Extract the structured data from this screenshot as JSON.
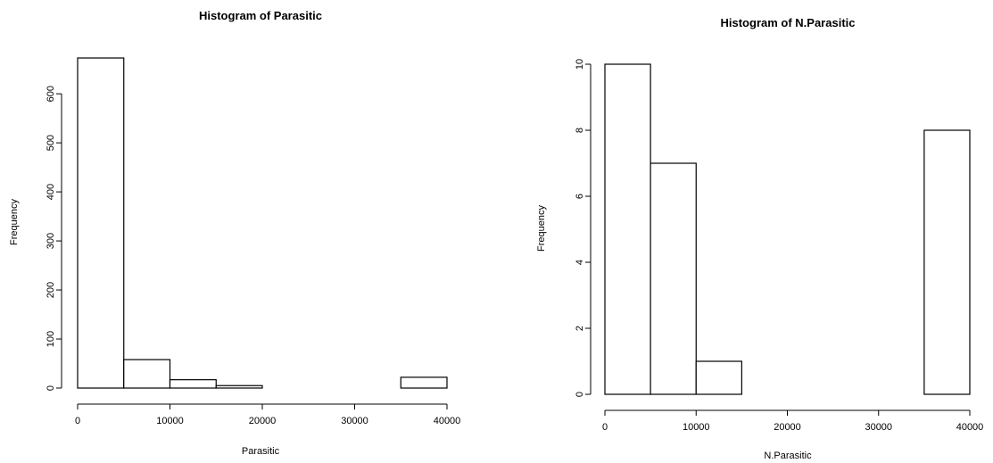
{
  "chart_data": [
    {
      "type": "bar",
      "title": "Histogram of Parasitic",
      "xlabel": "Parasitic",
      "ylabel": "Frequency",
      "bin_edges": [
        0,
        5000,
        10000,
        15000,
        20000,
        25000,
        30000,
        35000,
        40000
      ],
      "values": [
        673,
        58,
        17,
        5,
        0,
        0,
        0,
        22
      ],
      "xlim": [
        0,
        40000
      ],
      "ylim": [
        0,
        673
      ],
      "x_ticks": [
        0,
        10000,
        20000,
        30000,
        40000
      ],
      "x_tick_labels": [
        "0",
        "10000",
        "20000",
        "30000",
        "40000"
      ],
      "y_ticks": [
        0,
        100,
        200,
        300,
        400,
        500,
        600
      ],
      "y_tick_labels": [
        "0",
        "100",
        "200",
        "300",
        "400",
        "500",
        "600"
      ],
      "grid": false,
      "legend": "none",
      "colors": {
        "bar_fill": "#ffffff",
        "bar_stroke": "#000000"
      }
    },
    {
      "type": "bar",
      "title": "Histogram of N.Parasitic",
      "xlabel": "N.Parasitic",
      "ylabel": "Frequency",
      "bin_edges": [
        0,
        5000,
        10000,
        15000,
        20000,
        25000,
        30000,
        35000,
        40000
      ],
      "values": [
        10,
        7,
        1,
        0,
        0,
        0,
        0,
        8
      ],
      "xlim": [
        0,
        40000
      ],
      "ylim": [
        0,
        10
      ],
      "x_ticks": [
        0,
        10000,
        20000,
        30000,
        40000
      ],
      "x_tick_labels": [
        "0",
        "10000",
        "20000",
        "30000",
        "40000"
      ],
      "y_ticks": [
        0,
        2,
        4,
        6,
        8,
        10
      ],
      "y_tick_labels": [
        "0",
        "2",
        "4",
        "6",
        "8",
        "10"
      ],
      "grid": false,
      "legend": "none",
      "colors": {
        "bar_fill": "#ffffff",
        "bar_stroke": "#000000"
      }
    }
  ]
}
